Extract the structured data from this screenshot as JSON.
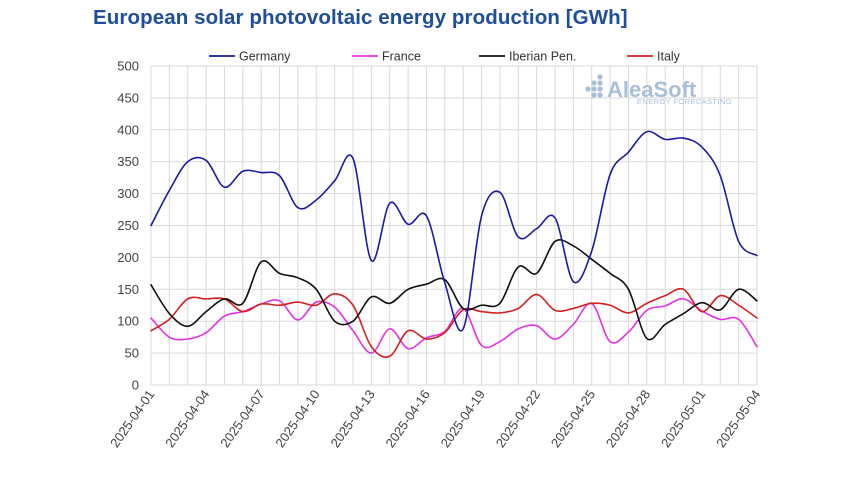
{
  "chart_data": {
    "type": "line",
    "title": "European solar photovoltaic energy production [GWh]",
    "x": [
      "2025-04-01",
      "2025-04-02",
      "2025-04-03",
      "2025-04-04",
      "2025-04-05",
      "2025-04-06",
      "2025-04-07",
      "2025-04-08",
      "2025-04-09",
      "2025-04-10",
      "2025-04-11",
      "2025-04-12",
      "2025-04-13",
      "2025-04-14",
      "2025-04-15",
      "2025-04-16",
      "2025-04-17",
      "2025-04-18",
      "2025-04-19",
      "2025-04-20",
      "2025-04-21",
      "2025-04-22",
      "2025-04-23",
      "2025-04-24",
      "2025-04-25",
      "2025-04-26",
      "2025-04-27",
      "2025-04-28",
      "2025-04-29",
      "2025-04-30",
      "2025-05-01",
      "2025-05-02",
      "2025-05-03",
      "2025-05-04"
    ],
    "x_tick_labels": [
      "2025-04-01",
      "2025-04-04",
      "2025-04-07",
      "2025-04-10",
      "2025-04-13",
      "2025-04-16",
      "2025-04-19",
      "2025-04-22",
      "2025-04-25",
      "2025-04-28",
      "2025-05-01",
      "2025-05-04"
    ],
    "ylim": [
      0,
      500
    ],
    "yticks": [
      0,
      50,
      100,
      150,
      200,
      250,
      300,
      350,
      400,
      450,
      500
    ],
    "grid": true,
    "legend_position": "top",
    "series": [
      {
        "name": "Germany",
        "color": "#1a1aa6",
        "values": [
          250,
          305,
          350,
          352,
          310,
          335,
          333,
          328,
          278,
          290,
          320,
          355,
          195,
          285,
          252,
          265,
          160,
          88,
          265,
          302,
          232,
          245,
          262,
          162,
          210,
          330,
          365,
          397,
          385,
          387,
          373,
          328,
          225,
          203
        ]
      },
      {
        "name": "France",
        "color": "#e332e3",
        "values": [
          105,
          75,
          72,
          82,
          108,
          115,
          127,
          132,
          102,
          130,
          122,
          85,
          50,
          88,
          57,
          74,
          84,
          120,
          62,
          68,
          88,
          93,
          72,
          95,
          128,
          68,
          83,
          117,
          124,
          135,
          116,
          103,
          103,
          60
        ]
      },
      {
        "name": "Iberian Pen.",
        "color": "#111111",
        "values": [
          157,
          112,
          92,
          115,
          135,
          128,
          193,
          175,
          168,
          150,
          100,
          100,
          138,
          128,
          150,
          158,
          165,
          120,
          125,
          128,
          185,
          175,
          225,
          218,
          197,
          175,
          150,
          73,
          95,
          112,
          129,
          118,
          150,
          132
        ]
      },
      {
        "name": "Italy",
        "color": "#d42020",
        "values": [
          85,
          103,
          135,
          135,
          135,
          115,
          127,
          125,
          130,
          125,
          143,
          125,
          60,
          45,
          85,
          72,
          82,
          118,
          115,
          113,
          120,
          142,
          117,
          120,
          128,
          125,
          113,
          128,
          140,
          150,
          115,
          140,
          125,
          105
        ]
      }
    ]
  },
  "logo": {
    "name": "AleaSoft",
    "tagline": "ENERGY FORECASTING"
  }
}
